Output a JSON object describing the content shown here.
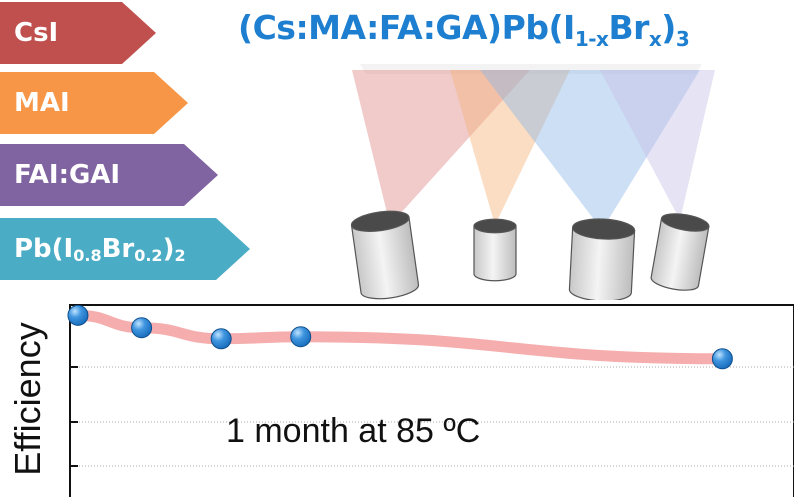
{
  "precursors": [
    {
      "name": "CsI",
      "color": "#c0504d"
    },
    {
      "name": "MAI",
      "color": "#f79646"
    },
    {
      "name": "FAI:GAI",
      "color": "#8064a2"
    },
    {
      "name": "Pb(I0.8Br0.2)2",
      "main": "Pb(I",
      "sub1": "0.8",
      "mid": "Br",
      "sub2": "0.2",
      "close": ")",
      "sub3": "2",
      "color": "#4bacc6"
    }
  ],
  "formula": {
    "prefix": "(Cs:MA:FA:GA)Pb(I",
    "sub1": "1-x",
    "mid": "Br",
    "sub2": "x",
    "close": ")",
    "sub3": "3",
    "color": "#1e7fd0"
  },
  "icons": [
    "evaporation-source-icon"
  ],
  "beam_colors": [
    "#e08a8a",
    "#f5b47a",
    "#8fb8e6",
    "#c8c0e6"
  ],
  "chart_data": {
    "type": "line",
    "ylabel": "Efficiency",
    "annotation": "1 month at 85 ºC",
    "x": [
      0,
      0.8,
      1.8,
      2.8,
      8.1
    ],
    "y": [
      0.95,
      0.77,
      0.61,
      0.64,
      0.32
    ],
    "xlim": [
      -0.1,
      9
    ],
    "ylim": [
      -1.8,
      1.1
    ],
    "grid": true,
    "marker_color": "#1b6fbf",
    "line_color": "#f4a4a4"
  }
}
